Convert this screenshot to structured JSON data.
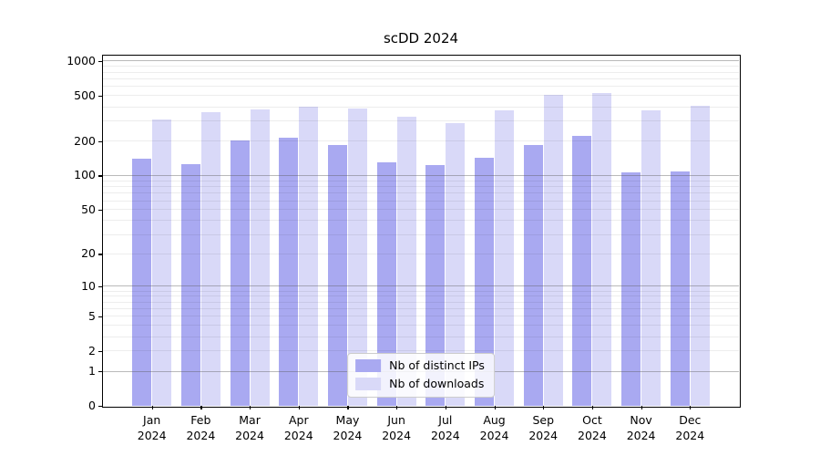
{
  "chart_data": {
    "type": "bar",
    "title": "scDD 2024",
    "yscale": "log1p",
    "grid": true,
    "legend_position": "lower center",
    "categories": [
      "Jan",
      "Feb",
      "Mar",
      "Apr",
      "May",
      "Jun",
      "Jul",
      "Aug",
      "Sep",
      "Oct",
      "Nov",
      "Dec"
    ],
    "x_year_label": "2024",
    "yticks": [
      0,
      1,
      2,
      5,
      10,
      20,
      50,
      100,
      200,
      500,
      1000
    ],
    "major_gridlines": [
      1,
      10,
      100,
      1000
    ],
    "minor_gridlines": [
      2,
      3,
      4,
      5,
      6,
      7,
      8,
      9,
      20,
      30,
      40,
      50,
      60,
      70,
      80,
      90,
      200,
      300,
      400,
      500,
      600,
      700,
      800,
      900
    ],
    "ylim": [
      0,
      1116
    ],
    "series": [
      {
        "name": "Nb of distinct IPs",
        "color": "#a9a9f1",
        "values": [
          140,
          127,
          203,
          215,
          186,
          131,
          123,
          143,
          185,
          224,
          107,
          109
        ]
      },
      {
        "name": "Nb of downloads",
        "color": "#d9d9f8",
        "values": [
          310,
          360,
          378,
          397,
          386,
          327,
          290,
          374,
          508,
          530,
          374,
          410
        ]
      }
    ],
    "colors": {
      "background": "#ffffff",
      "axis": "#000000",
      "grid_major": "#b0b0b0",
      "grid_minor": "#ececec"
    }
  }
}
